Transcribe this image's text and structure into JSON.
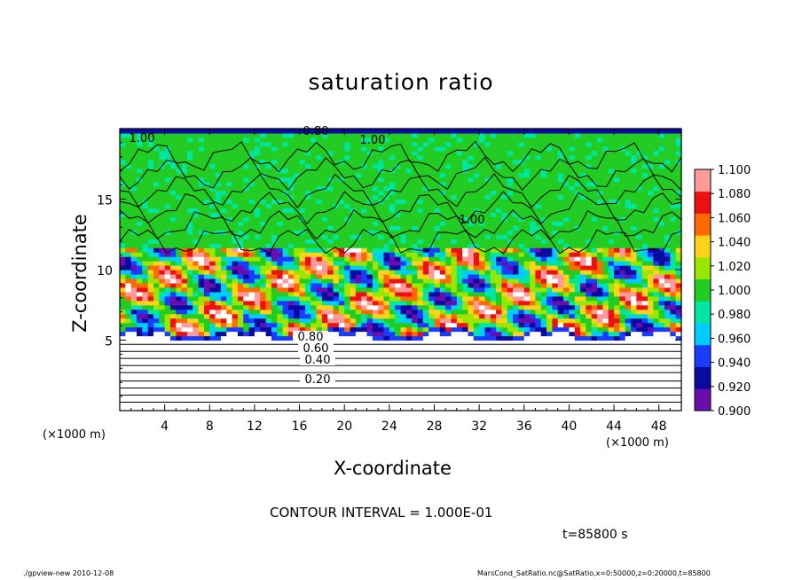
{
  "chart_data": {
    "type": "heatmap",
    "title": "saturation ratio",
    "xlabel": "X-coordinate",
    "ylabel": "Z-coordinate",
    "x_unit": "(×1000 m)",
    "z_unit": "(×1000 m)",
    "xlim": [
      0,
      50
    ],
    "zlim": [
      0,
      20
    ],
    "x_ticks": [
      4,
      8,
      12,
      16,
      20,
      24,
      28,
      32,
      36,
      40,
      44,
      48
    ],
    "z_ticks": [
      5,
      10,
      15
    ],
    "colorbar": {
      "min": 0.9,
      "max": 1.1,
      "levels": [
        {
          "value": "0.900",
          "color": "#6a0dad"
        },
        {
          "value": "0.920",
          "color": "#0a0a9e"
        },
        {
          "value": "0.940",
          "color": "#1a3cff"
        },
        {
          "value": "0.960",
          "color": "#00ccff"
        },
        {
          "value": "0.980",
          "color": "#00e6a0"
        },
        {
          "value": "1.000",
          "color": "#22cc22"
        },
        {
          "value": "1.020",
          "color": "#99e600"
        },
        {
          "value": "1.040",
          "color": "#ffd21a"
        },
        {
          "value": "1.060",
          "color": "#ff6a00"
        },
        {
          "value": "1.080",
          "color": "#ee1111"
        },
        {
          "value": "1.100",
          "color": "#ff9a9a"
        }
      ]
    },
    "contour_labels": [
      "0.20",
      "0.40",
      "0.60",
      "0.80",
      "1.00",
      "1.00",
      "1.00",
      "0.80"
    ],
    "contour_interval": "CONTOUR INTERVAL = 1.000E-01",
    "time": "t=85800 s"
  },
  "footer": {
    "left": "./gpview-new   2010-12-08",
    "right": "MarsCond_SatRatio.nc@SatRatio,x=0:50000,z=0:20000,t=85800"
  }
}
